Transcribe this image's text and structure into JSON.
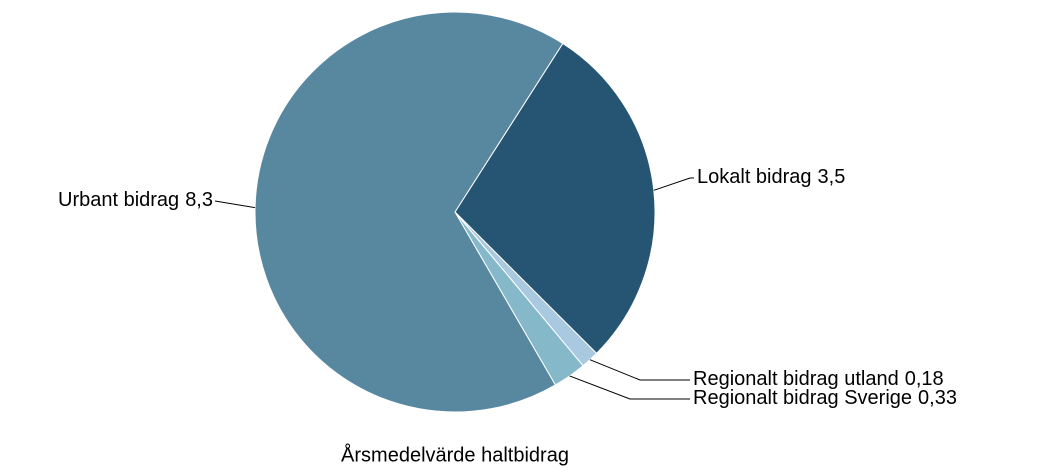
{
  "chart_data": {
    "type": "pie",
    "title": "Årsmedelvärde haltbidrag",
    "categories": [
      "Lokalt bidrag",
      "Regionalt bidrag utland",
      "Regionalt bidrag Sverige",
      "Urbant bidrag"
    ],
    "values": [
      3.5,
      0.18,
      0.33,
      8.3
    ],
    "value_labels": [
      "3,5",
      "0,18",
      "0,33",
      "8,3"
    ],
    "colors": [
      "#265473",
      "#a9c9e0",
      "#85b9c9",
      "#58889f"
    ]
  }
}
